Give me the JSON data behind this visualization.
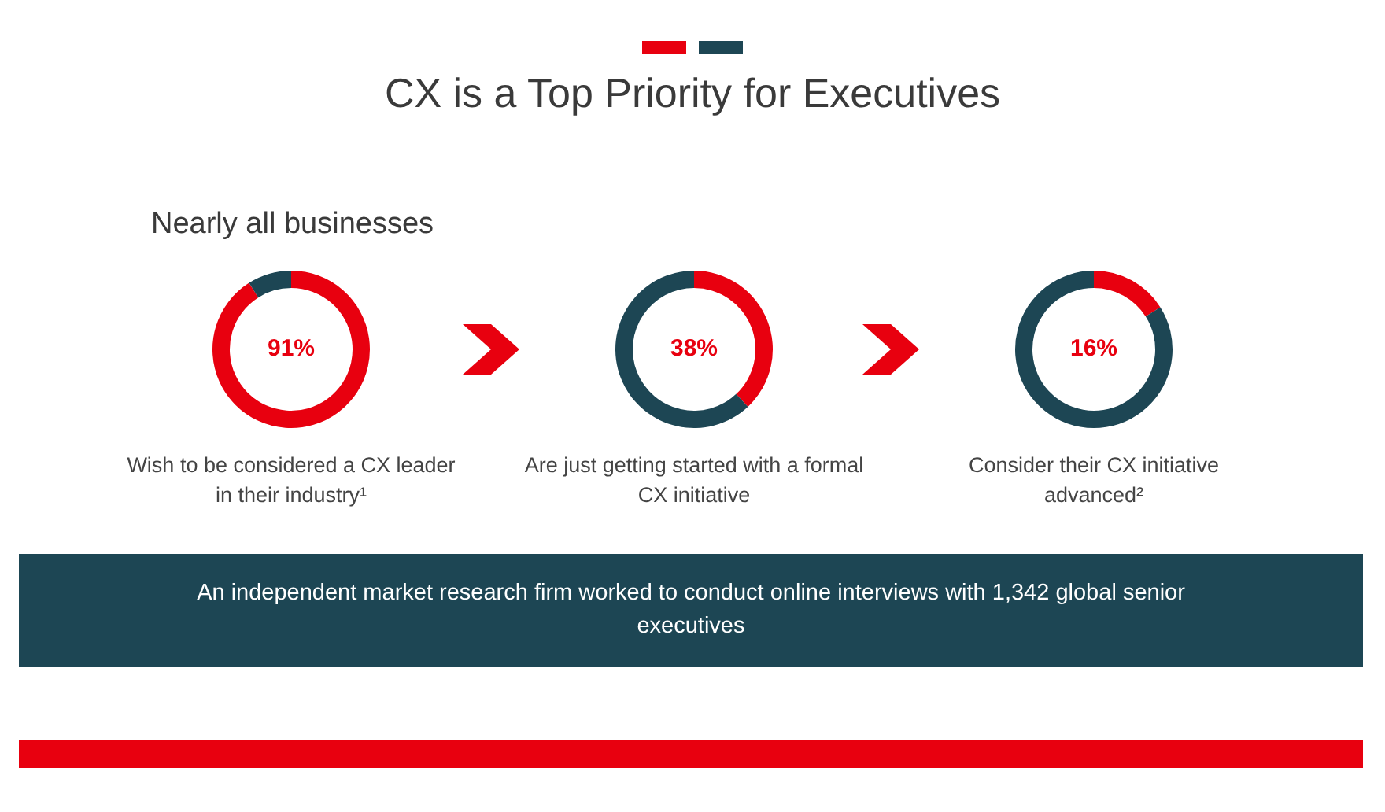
{
  "chart_data": [
    {
      "type": "other",
      "title": "CX is a Top Priority for Executives",
      "subtitle": "Nearly all businesses"
    },
    {
      "type": "donut",
      "xlabel": "Wish to be considered a CX leader in their industry¹",
      "categories": [
        null,
        null
      ],
      "values": [
        91,
        9
      ],
      "colors": [
        "#e8000f",
        "#1d4654"
      ],
      "value_labels": [
        "91%",
        null
      ],
      "legend": false
    },
    {
      "type": "donut",
      "xlabel": "Are just getting started with a formal CX initiative",
      "categories": [
        null,
        null
      ],
      "values": [
        38,
        62
      ],
      "colors": [
        "#e8000f",
        "#1d4654"
      ],
      "value_labels": [
        "38%",
        null
      ],
      "legend": false
    },
    {
      "type": "donut",
      "xlabel": "Consider their CX initiative advanced²",
      "categories": [
        null,
        null
      ],
      "values": [
        16,
        84
      ],
      "colors": [
        "#e8000f",
        "#1d4654"
      ],
      "value_labels": [
        "16%",
        null
      ],
      "legend": false
    },
    {
      "type": "other",
      "annotations": [
        "An independent market research firm worked to conduct online interviews with 1,342 global senior executives"
      ]
    }
  ]
}
